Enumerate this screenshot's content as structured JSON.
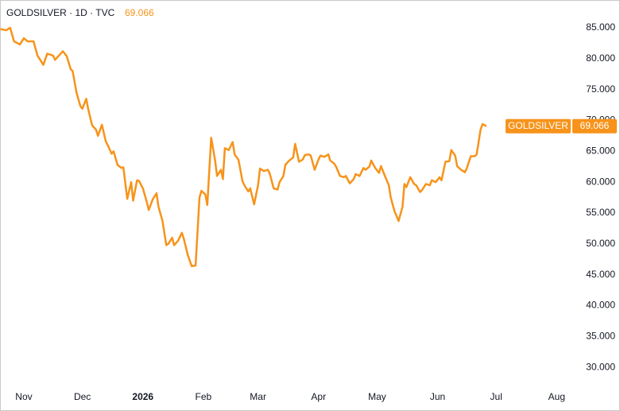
{
  "chart_data": {
    "type": "line",
    "title": "GOLDSILVER · 1D · TVC",
    "x": [
      -12,
      -9,
      -7,
      -5,
      -2,
      0,
      2,
      5,
      7,
      10,
      12,
      15,
      16,
      20,
      22,
      24,
      25,
      27,
      29,
      30,
      32,
      33,
      35,
      37,
      38,
      40,
      42,
      43,
      45,
      46,
      48,
      50,
      51,
      53,
      55,
      56,
      58,
      59,
      61,
      63,
      64,
      66,
      68,
      69,
      71,
      73,
      74,
      76,
      77,
      79,
      81,
      82,
      84,
      86,
      88,
      90,
      91,
      93,
      94,
      96,
      98,
      99,
      101,
      102,
      103,
      105,
      107,
      108,
      110,
      112,
      113,
      115,
      116,
      118,
      120,
      121,
      123,
      125,
      126,
      128,
      130,
      131,
      133,
      134,
      136,
      138,
      139,
      141,
      143,
      144,
      146,
      147,
      149,
      151,
      152,
      154,
      156,
      157,
      159,
      160,
      162,
      164,
      165,
      167,
      169,
      170,
      172,
      174,
      175,
      177,
      178,
      180,
      182,
      183,
      185,
      187,
      188,
      190,
      191,
      192,
      194,
      195,
      196,
      198,
      200,
      201,
      203,
      204,
      206,
      208,
      209,
      211,
      213,
      214,
      216,
      218,
      219,
      221,
      222,
      224,
      226,
      227,
      229,
      231,
      232,
      234,
      235,
      237
    ],
    "series": [
      {
        "name": "GOLDSILVER",
        "color": "#f7931a",
        "values": [
          84.8,
          84.6,
          85.0,
          82.8,
          82.3,
          83.3,
          82.8,
          82.8,
          80.5,
          79.0,
          80.8,
          80.5,
          79.8,
          81.2,
          80.4,
          78.3,
          78.0,
          74.5,
          72.3,
          71.9,
          73.5,
          71.8,
          69.2,
          68.5,
          67.5,
          69.3,
          66.6,
          66.0,
          64.6,
          65.0,
          62.8,
          62.3,
          62.4,
          57.3,
          60.0,
          57.0,
          60.3,
          60.2,
          59.0,
          56.8,
          55.5,
          57.2,
          58.2,
          56.0,
          53.8,
          49.8,
          50.0,
          51.0,
          49.8,
          50.5,
          51.8,
          50.8,
          48.2,
          46.4,
          46.5,
          57.5,
          58.6,
          58.0,
          56.3,
          67.2,
          63.5,
          61.0,
          62.0,
          60.5,
          65.5,
          65.2,
          66.5,
          64.5,
          63.6,
          60.2,
          59.5,
          58.5,
          59.0,
          56.4,
          59.5,
          62.2,
          61.8,
          62.0,
          61.4,
          59.0,
          58.8,
          60.0,
          61.0,
          62.8,
          63.5,
          64.0,
          66.2,
          63.3,
          63.7,
          64.4,
          64.5,
          64.3,
          62.0,
          63.7,
          64.3,
          64.1,
          64.5,
          63.5,
          63.0,
          62.5,
          61.0,
          60.8,
          61.0,
          59.8,
          60.5,
          61.3,
          61.0,
          62.3,
          62.0,
          62.5,
          63.5,
          62.3,
          61.5,
          62.6,
          61.0,
          59.5,
          57.5,
          55.2,
          54.5,
          53.7,
          56.0,
          59.7,
          59.2,
          60.8,
          59.7,
          59.5,
          58.4,
          58.7,
          59.7,
          59.5,
          60.3,
          60.0,
          60.8,
          60.3,
          63.3,
          63.4,
          65.2,
          64.3,
          62.6,
          62.0,
          61.6,
          62.3,
          64.2,
          64.2,
          64.5,
          68.5,
          69.4,
          69.066
        ]
      }
    ],
    "xlim": [
      -12.2,
      281
    ],
    "xticks": [
      {
        "value": 0,
        "label": "Nov"
      },
      {
        "value": 30,
        "label": "Dec"
      },
      {
        "value": 61,
        "label": "2026"
      },
      {
        "value": 92,
        "label": "Feb"
      },
      {
        "value": 120,
        "label": "Mar"
      },
      {
        "value": 151,
        "label": "Apr"
      },
      {
        "value": 181,
        "label": "May"
      },
      {
        "value": 212,
        "label": "Jun"
      },
      {
        "value": 242,
        "label": "Jul"
      },
      {
        "value": 273,
        "label": "Aug"
      }
    ],
    "ylim": [
      26.8,
      89.5
    ],
    "yticks": [
      {
        "value": 30,
        "label": "30.000"
      },
      {
        "value": 35,
        "label": "35.000"
      },
      {
        "value": 40,
        "label": "40.000"
      },
      {
        "value": 45,
        "label": "45.000"
      },
      {
        "value": 50,
        "label": "50.000"
      },
      {
        "value": 55,
        "label": "55.000"
      },
      {
        "value": 60,
        "label": "60.000"
      },
      {
        "value": 65,
        "label": "65.000"
      },
      {
        "value": 70,
        "label": "70.000"
      },
      {
        "value": 75,
        "label": "75.000"
      },
      {
        "value": 80,
        "label": "80.000"
      },
      {
        "value": 85,
        "label": "85.000"
      }
    ],
    "grid": false
  }
}
